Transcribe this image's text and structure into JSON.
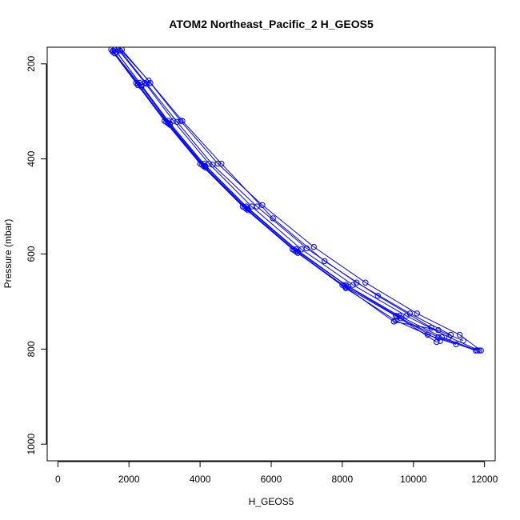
{
  "chart_data": {
    "type": "line",
    "title": "ATOM2 Northeast_Pacific_2 H_GEOS5",
    "xlabel": "H_GEOS5",
    "ylabel": "Pressure (mbar)",
    "xlim": [
      -300,
      12300
    ],
    "ylim": [
      1035,
      165
    ],
    "y_reversed": true,
    "grid": false,
    "xticks": [
      0,
      2000,
      4000,
      6000,
      8000,
      10000,
      12000
    ],
    "yticks": [
      200,
      400,
      600,
      800,
      1000
    ],
    "marker": "open-circle",
    "series_color": "#0000ff",
    "series": [
      {
        "points": [
          [
            1500,
            170
          ],
          [
            2200,
            240
          ],
          [
            3000,
            320
          ],
          [
            4000,
            410
          ],
          [
            5200,
            500
          ],
          [
            6600,
            590
          ],
          [
            8000,
            665
          ],
          [
            9500,
            730
          ],
          [
            10700,
            775
          ],
          [
            11750,
            803
          ]
        ]
      },
      {
        "points": [
          [
            1600,
            170
          ],
          [
            2300,
            240
          ],
          [
            3100,
            320
          ],
          [
            4100,
            410
          ],
          [
            5300,
            500
          ],
          [
            6700,
            590
          ],
          [
            8100,
            665
          ],
          [
            9600,
            730
          ],
          [
            10800,
            775
          ],
          [
            11800,
            803
          ]
        ]
      },
      {
        "points": [
          [
            1700,
            170
          ],
          [
            2450,
            240
          ],
          [
            3250,
            320
          ],
          [
            4250,
            410
          ],
          [
            5450,
            500
          ],
          [
            6850,
            590
          ],
          [
            8300,
            665
          ],
          [
            9800,
            730
          ],
          [
            11000,
            775
          ],
          [
            11850,
            803
          ]
        ]
      },
      {
        "points": [
          [
            1650,
            175
          ],
          [
            2350,
            245
          ],
          [
            3150,
            325
          ],
          [
            4150,
            415
          ],
          [
            5350,
            505
          ],
          [
            6750,
            595
          ],
          [
            8150,
            668
          ],
          [
            9650,
            735
          ],
          [
            10750,
            783
          ]
        ]
      },
      {
        "points": [
          [
            1550,
            172
          ],
          [
            2250,
            242
          ],
          [
            3050,
            322
          ],
          [
            4050,
            412
          ],
          [
            5250,
            502
          ],
          [
            6650,
            592
          ],
          [
            8050,
            667
          ],
          [
            9550,
            732
          ],
          [
            10650,
            785
          ]
        ]
      },
      {
        "points": [
          [
            1750,
            172
          ],
          [
            2500,
            242
          ],
          [
            3350,
            322
          ],
          [
            4350,
            412
          ],
          [
            5600,
            500
          ],
          [
            7000,
            588
          ],
          [
            8400,
            660
          ],
          [
            9900,
            725
          ],
          [
            11050,
            770
          ]
        ]
      },
      {
        "points": [
          [
            1800,
            170
          ],
          [
            2600,
            240
          ],
          [
            3450,
            320
          ],
          [
            4500,
            410
          ],
          [
            5750,
            497
          ],
          [
            7200,
            585
          ],
          [
            8650,
            660
          ],
          [
            10100,
            725
          ],
          [
            11300,
            770
          ],
          [
            11900,
            803
          ]
        ]
      },
      {
        "points": [
          [
            1700,
            165
          ],
          [
            2550,
            235
          ],
          [
            3500,
            320
          ],
          [
            4600,
            410
          ],
          [
            6050,
            525
          ],
          [
            7500,
            615
          ],
          [
            9000,
            688
          ],
          [
            10500,
            755
          ],
          [
            11400,
            782
          ]
        ]
      },
      {
        "points": [
          [
            1600,
            178
          ],
          [
            2350,
            248
          ],
          [
            3150,
            328
          ],
          [
            4150,
            418
          ],
          [
            5350,
            508
          ],
          [
            6750,
            598
          ],
          [
            8100,
            672
          ],
          [
            9500,
            740
          ],
          [
            10400,
            770
          ],
          [
            11200,
            790
          ]
        ]
      },
      {
        "points": [
          [
            1550,
            175
          ],
          [
            2250,
            245
          ],
          [
            3100,
            325
          ],
          [
            4100,
            415
          ],
          [
            5300,
            505
          ],
          [
            6700,
            595
          ],
          [
            8100,
            670
          ],
          [
            9450,
            742
          ],
          [
            10700,
            760
          ]
        ]
      }
    ]
  }
}
